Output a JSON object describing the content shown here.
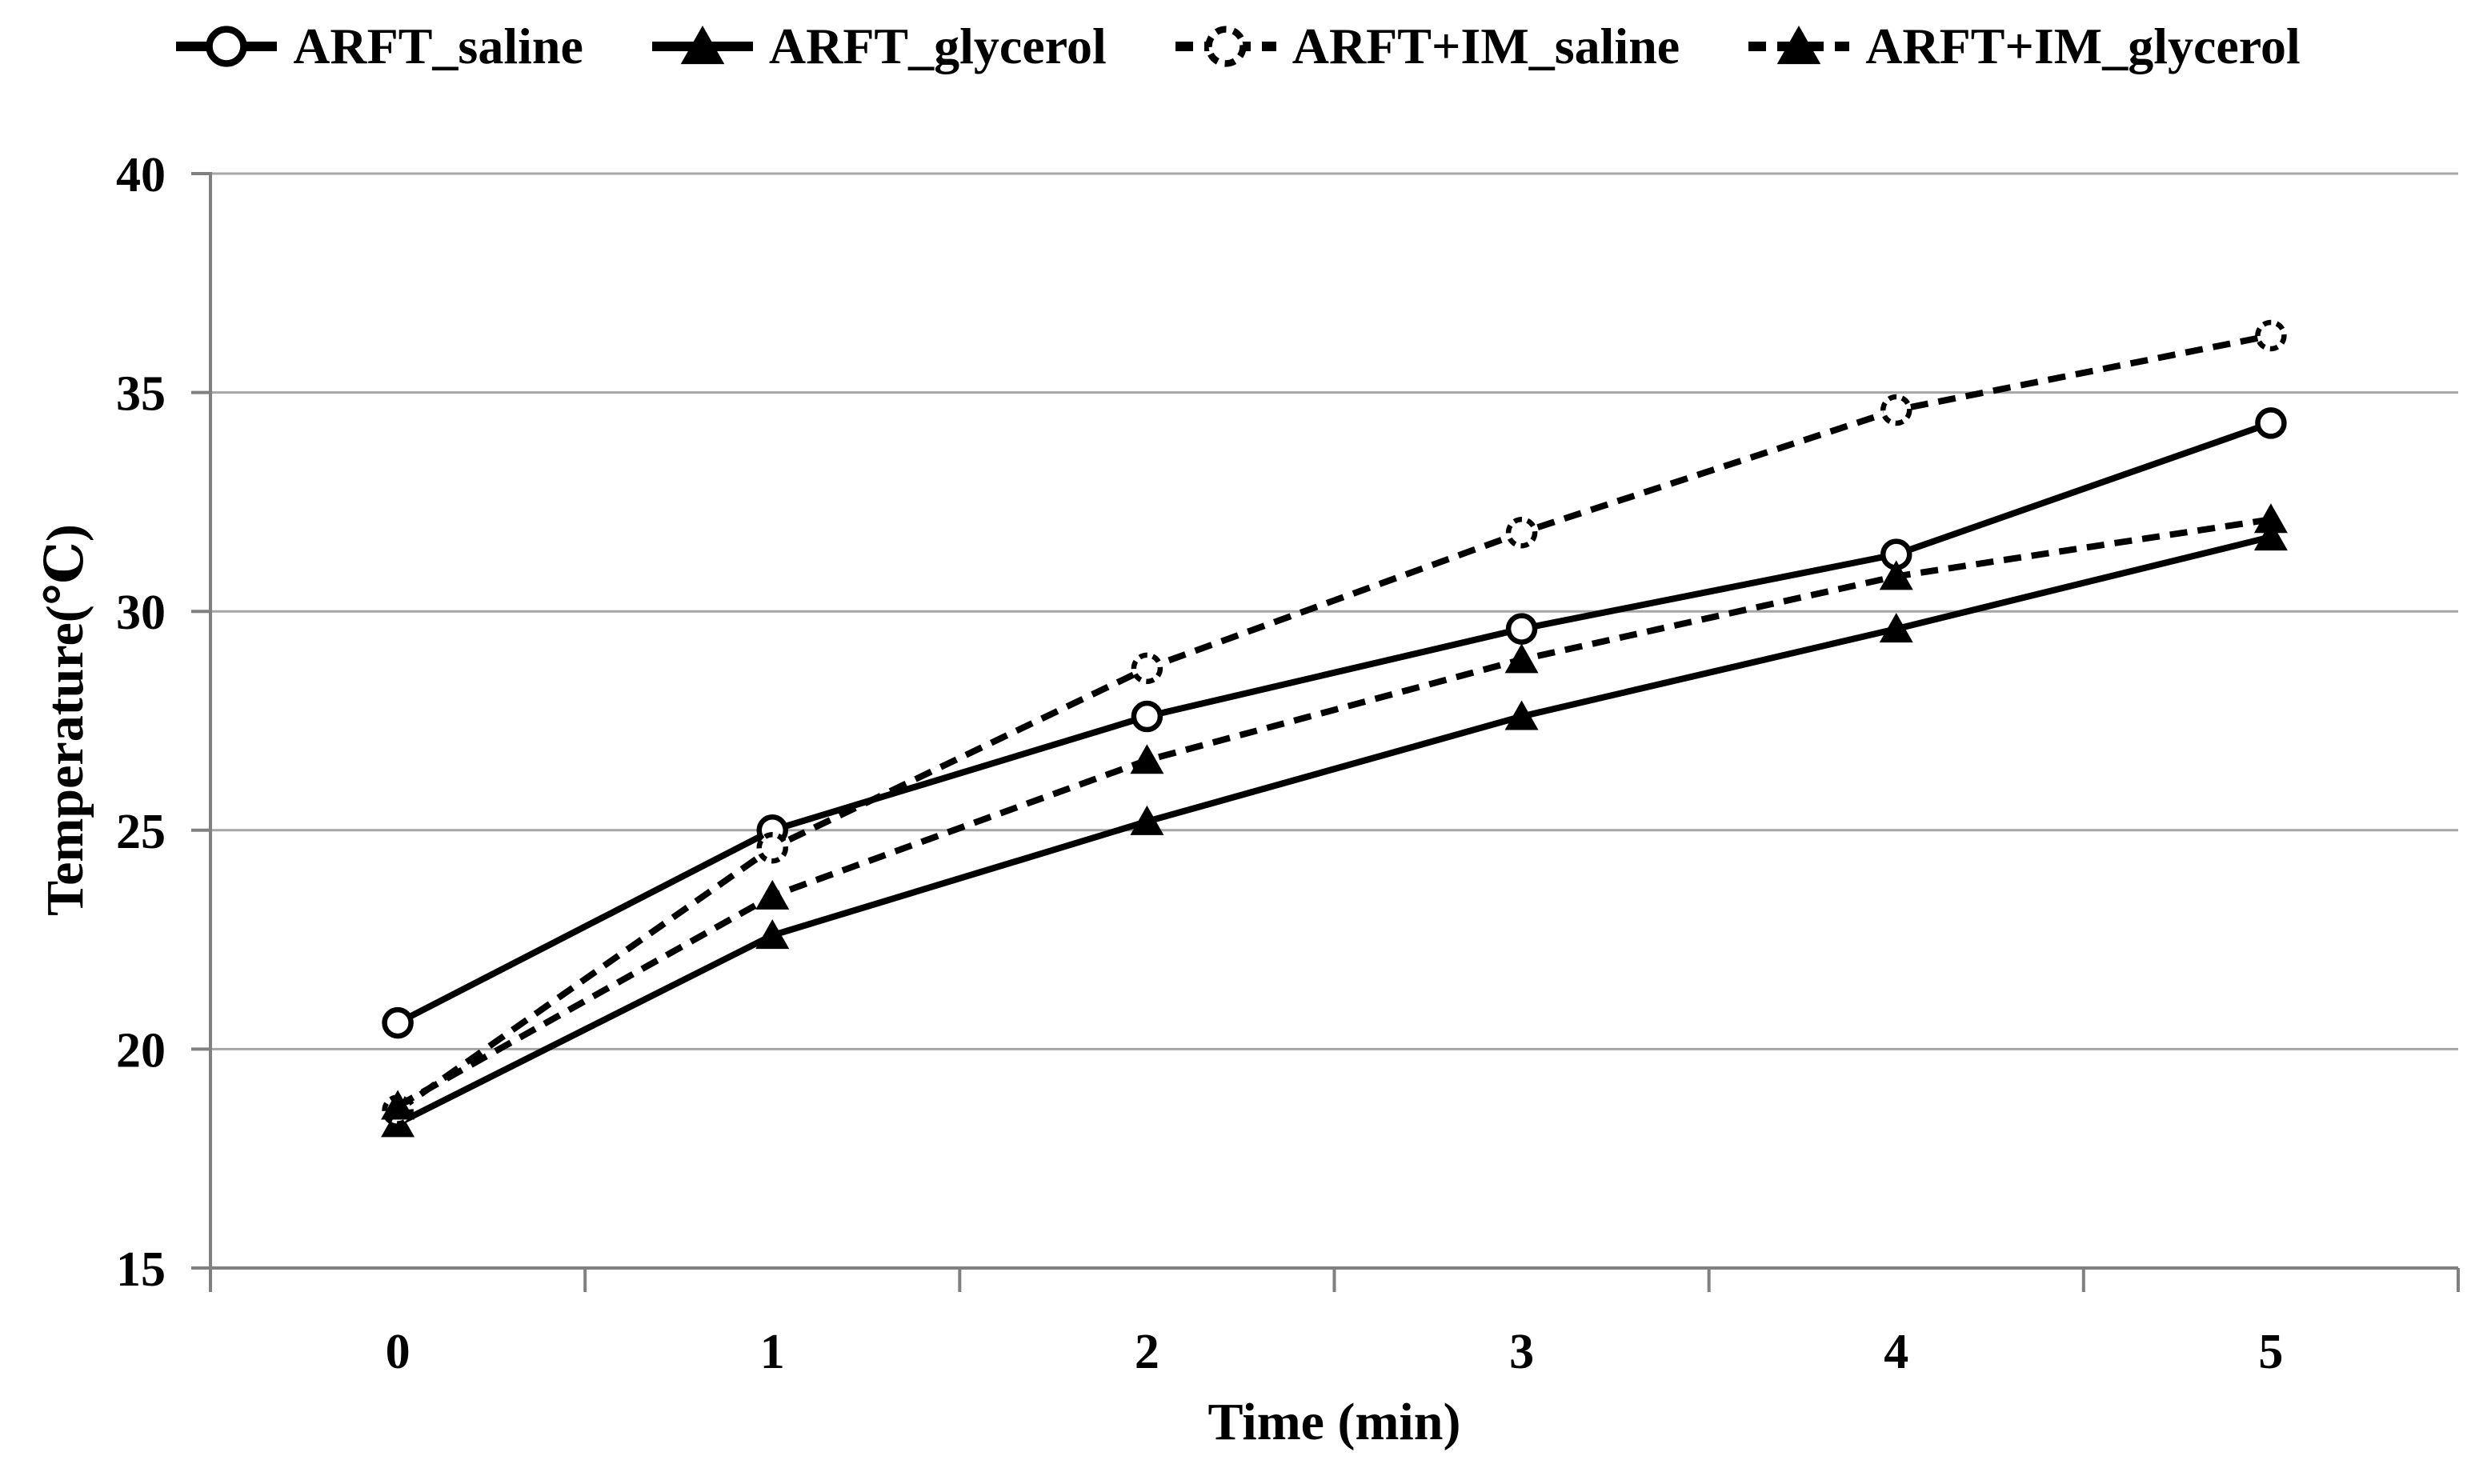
{
  "chart_data": {
    "type": "line",
    "title": "",
    "xlabel": "Time (min)",
    "ylabel": "Temperature(℃)",
    "x": [
      0,
      1,
      2,
      3,
      4,
      5
    ],
    "x_ticklabels": [
      "0",
      "1",
      "2",
      "3",
      "4",
      "5"
    ],
    "y_ticks": [
      40,
      35,
      30,
      25,
      20,
      15
    ],
    "ylim": [
      15,
      40
    ],
    "grid": "horizontal-major",
    "legend_position": "top",
    "series": [
      {
        "name": "ARFT_saline",
        "line": "solid",
        "marker": "circle-open",
        "values": [
          20.6,
          25.0,
          27.6,
          29.6,
          31.3,
          34.3
        ]
      },
      {
        "name": "ARFT_glycerol",
        "line": "solid",
        "marker": "triangle-filled",
        "values": [
          18.3,
          22.6,
          25.2,
          27.6,
          29.6,
          31.7
        ]
      },
      {
        "name": "ARFT+IM_saline",
        "line": "dashed",
        "marker": "circle-open-dashed",
        "values": [
          18.6,
          24.6,
          28.7,
          31.8,
          34.6,
          36.3
        ]
      },
      {
        "name": "ARFT+IM_glycerol",
        "line": "dashed",
        "marker": "triangle-filled",
        "values": [
          18.7,
          23.5,
          26.6,
          28.9,
          30.8,
          32.1
        ]
      }
    ],
    "colors": {
      "series": "#000000",
      "grid": "#a6a6a6",
      "axis": "#808080",
      "background": "#ffffff",
      "text": "#000000"
    }
  }
}
